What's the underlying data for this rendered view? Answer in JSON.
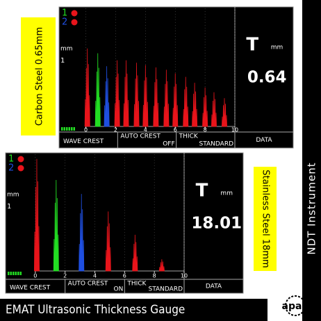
{
  "left_label": "Carbon Steel 0.65mm",
  "right_label": "Stainless Steel 18mm",
  "side_banner": "NDT Instrument",
  "bottom_banner": "EMAT Ultrasonic Thickness Gauge",
  "logo": "apan",
  "screens": [
    {
      "channels": [
        "1",
        "2"
      ],
      "unit_label": "mm",
      "gain": "1",
      "xlim": [
        -1.8,
        10
      ],
      "xticks": [
        0,
        2,
        4,
        6,
        8,
        10
      ],
      "ylim": [
        0,
        100
      ],
      "series": [
        {
          "color": "#e8141b",
          "x": [
            0.1,
            2.1,
            2.7,
            3.4,
            4.0,
            4.7,
            5.4,
            6.0,
            6.7,
            7.3,
            8.0,
            8.6,
            9.3
          ],
          "values": [
            66,
            56,
            56,
            54,
            52,
            50,
            48,
            45,
            42,
            37,
            33,
            29,
            24
          ]
        },
        {
          "color": "#22dd22",
          "x": [
            0.8
          ],
          "values": [
            62
          ]
        },
        {
          "color": "#1f4fe0",
          "x": [
            1.4
          ],
          "values": [
            51
          ]
        }
      ],
      "readout": {
        "symbol": "T",
        "unit": "mm",
        "value": "0.64"
      },
      "menu": [
        {
          "label": "WAVE CREST"
        },
        {
          "label": "AUTO CREST",
          "state": "OFF"
        },
        {
          "label": "THICK",
          "state": "STANDARD"
        },
        {
          "label": "DATA"
        }
      ]
    },
    {
      "channels": [
        "1",
        "2"
      ],
      "unit_label": "mm",
      "gain": "1",
      "xlim": [
        -2,
        10
      ],
      "xticks": [
        0,
        2,
        4,
        6,
        8,
        10
      ],
      "ylim": [
        0,
        100
      ],
      "series": [
        {
          "color": "#e8141b",
          "x": [
            0.1,
            4.9,
            6.7,
            8.5
          ],
          "values": [
            96,
            51,
            31,
            10
          ]
        },
        {
          "color": "#22dd22",
          "x": [
            1.4
          ],
          "values": [
            78
          ]
        },
        {
          "color": "#1f4fe0",
          "x": [
            3.1
          ],
          "values": [
            66
          ]
        }
      ],
      "readout": {
        "symbol": "T",
        "unit": "mm",
        "value": "18.01"
      },
      "menu": [
        {
          "label": "WAVE CREST"
        },
        {
          "label": "AUTO CREST",
          "state": "ON"
        },
        {
          "label": "THICK",
          "state": "STANDARD"
        },
        {
          "label": "DATA"
        }
      ]
    }
  ]
}
